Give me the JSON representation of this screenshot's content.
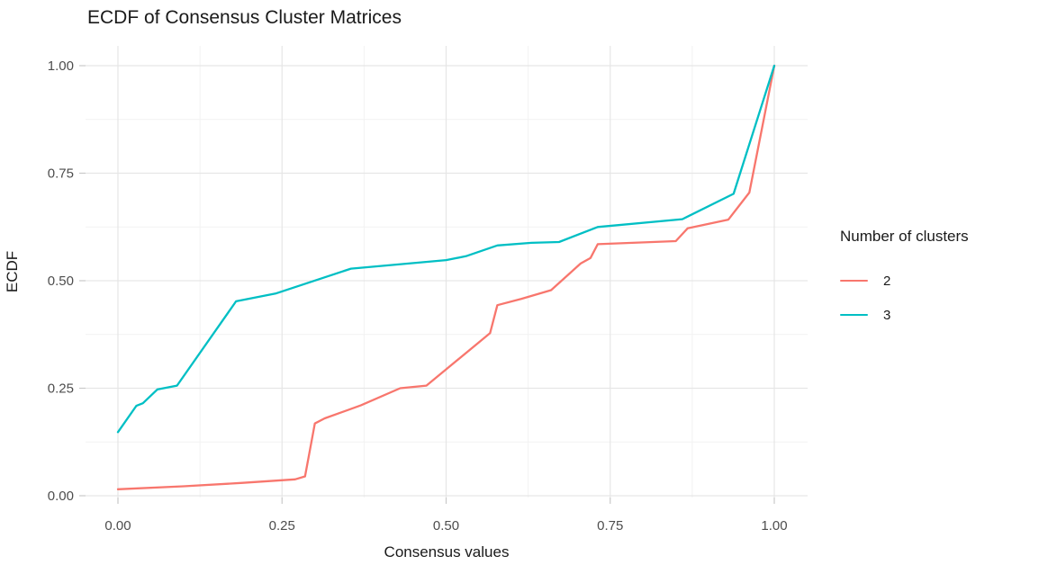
{
  "chart_data": {
    "type": "line",
    "subtype": "ecdf",
    "title": "ECDF of Consensus Cluster Matrices",
    "xlabel": "Consensus values",
    "ylabel": "ECDF",
    "xlim": [
      0,
      1
    ],
    "ylim": [
      0,
      1
    ],
    "grid": "major+minor",
    "x_ticks": [
      {
        "value": 0.0,
        "label": "0.00"
      },
      {
        "value": 0.25,
        "label": "0.25"
      },
      {
        "value": 0.5,
        "label": "0.50"
      },
      {
        "value": 0.75,
        "label": "0.75"
      },
      {
        "value": 1.0,
        "label": "1.00"
      }
    ],
    "y_ticks": [
      {
        "value": 0.0,
        "label": "0.00"
      },
      {
        "value": 0.25,
        "label": "0.25"
      },
      {
        "value": 0.5,
        "label": "0.50"
      },
      {
        "value": 0.75,
        "label": "0.75"
      },
      {
        "value": 1.0,
        "label": "1.00"
      }
    ],
    "minor_ticks": [
      0.125,
      0.375,
      0.625,
      0.875
    ],
    "legend": {
      "title": "Number of clusters",
      "position": "right"
    },
    "series": [
      {
        "name": "2",
        "color": "#F8766D",
        "points": [
          [
            0.0,
            0.015
          ],
          [
            0.1,
            0.022
          ],
          [
            0.19,
            0.03
          ],
          [
            0.27,
            0.038
          ],
          [
            0.285,
            0.045
          ],
          [
            0.3,
            0.168
          ],
          [
            0.315,
            0.18
          ],
          [
            0.37,
            0.21
          ],
          [
            0.43,
            0.25
          ],
          [
            0.47,
            0.256
          ],
          [
            0.567,
            0.378
          ],
          [
            0.578,
            0.443
          ],
          [
            0.615,
            0.458
          ],
          [
            0.66,
            0.478
          ],
          [
            0.705,
            0.54
          ],
          [
            0.72,
            0.553
          ],
          [
            0.731,
            0.585
          ],
          [
            0.85,
            0.592
          ],
          [
            0.868,
            0.622
          ],
          [
            0.93,
            0.642
          ],
          [
            0.962,
            0.705
          ],
          [
            1.0,
            1.0
          ]
        ]
      },
      {
        "name": "3",
        "color": "#00BFC4",
        "points": [
          [
            0.0,
            0.148
          ],
          [
            0.028,
            0.209
          ],
          [
            0.038,
            0.215
          ],
          [
            0.06,
            0.247
          ],
          [
            0.09,
            0.256
          ],
          [
            0.18,
            0.452
          ],
          [
            0.24,
            0.47
          ],
          [
            0.355,
            0.528
          ],
          [
            0.5,
            0.548
          ],
          [
            0.53,
            0.557
          ],
          [
            0.578,
            0.582
          ],
          [
            0.63,
            0.588
          ],
          [
            0.672,
            0.59
          ],
          [
            0.731,
            0.625
          ],
          [
            0.86,
            0.643
          ],
          [
            0.938,
            0.702
          ],
          [
            1.0,
            1.0
          ]
        ]
      }
    ],
    "style": {
      "background": "#FFFFFF",
      "major_grid_color": "#E6E6E6",
      "minor_grid_color": "#F2F2F2",
      "tick_mark_color": "#C9C9C9",
      "tick_label_color": "#4D4D4D",
      "text_color": "#1A1A1A",
      "line_width": 2.3
    }
  }
}
